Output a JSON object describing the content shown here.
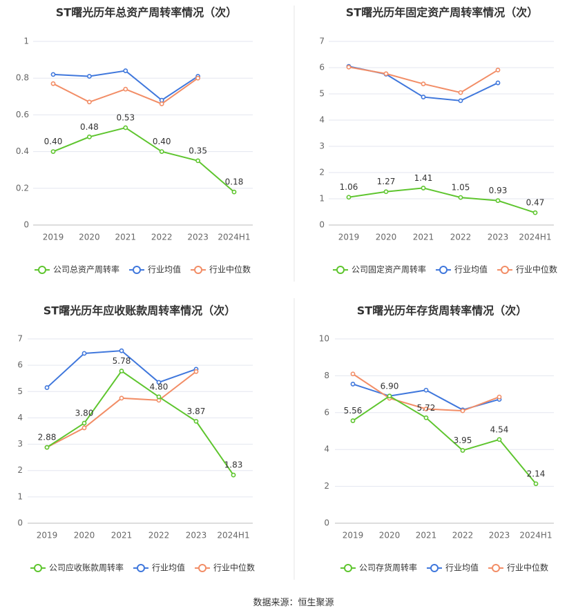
{
  "source_label": "数据来源：恒生聚源",
  "colors": {
    "company": "#5ec52e",
    "avg": "#3f77dc",
    "median": "#f28d66",
    "grid": "#e3e6ef",
    "axis": "#666666",
    "divider": "#e5e5e5"
  },
  "chart_data": [
    {
      "type": "line",
      "title": "ST曙光历年总资产周转率情况（次）",
      "categories": [
        "2019",
        "2020",
        "2021",
        "2022",
        "2023",
        "2024H1"
      ],
      "ylim": [
        0,
        1
      ],
      "yticks": [
        "0",
        "0.2",
        "0.4",
        "0.6",
        "0.8",
        "1"
      ],
      "grid": true,
      "legend_position": "bottom",
      "series": [
        {
          "name": "公司总资产周转率",
          "color": "#5ec52e",
          "values": [
            0.4,
            0.48,
            0.53,
            0.4,
            0.35,
            0.18
          ],
          "labels": [
            "0.40",
            "0.48",
            "0.53",
            "0.40",
            "0.35",
            "0.18"
          ]
        },
        {
          "name": "行业均值",
          "color": "#3f77dc",
          "values": [
            0.82,
            0.81,
            0.84,
            0.68,
            0.81,
            null
          ]
        },
        {
          "name": "行业中位数",
          "color": "#f28d66",
          "values": [
            0.77,
            0.67,
            0.74,
            0.66,
            0.8,
            null
          ]
        }
      ]
    },
    {
      "type": "line",
      "title": "ST曙光历年固定资产周转率情况（次）",
      "categories": [
        "2019",
        "2020",
        "2021",
        "2022",
        "2023",
        "2024H1"
      ],
      "ylim": [
        0,
        7
      ],
      "yticks": [
        "0",
        "1",
        "2",
        "3",
        "4",
        "5",
        "6",
        "7"
      ],
      "grid": true,
      "legend_position": "bottom",
      "series": [
        {
          "name": "公司固定资产周转率",
          "color": "#5ec52e",
          "values": [
            1.06,
            1.27,
            1.41,
            1.05,
            0.93,
            0.47
          ],
          "labels": [
            "1.06",
            "1.27",
            "1.41",
            "1.05",
            "0.93",
            "0.47"
          ]
        },
        {
          "name": "行业均值",
          "color": "#3f77dc",
          "values": [
            6.05,
            5.75,
            4.88,
            4.74,
            5.42,
            null
          ]
        },
        {
          "name": "行业中位数",
          "color": "#f28d66",
          "values": [
            6.02,
            5.77,
            5.38,
            5.05,
            5.91,
            null
          ]
        }
      ]
    },
    {
      "type": "line",
      "title": "ST曙光历年应收账款周转率情况（次）",
      "categories": [
        "2019",
        "2020",
        "2021",
        "2022",
        "2023",
        "2024H1"
      ],
      "ylim": [
        0,
        7
      ],
      "yticks": [
        "0",
        "1",
        "2",
        "3",
        "4",
        "5",
        "6",
        "7"
      ],
      "grid": true,
      "legend_position": "bottom",
      "series": [
        {
          "name": "公司应收账款周转率",
          "color": "#5ec52e",
          "values": [
            2.88,
            3.8,
            5.78,
            4.8,
            3.87,
            1.83
          ],
          "labels": [
            "2.88",
            "3.80",
            "5.78",
            "4.80",
            "3.87",
            "1.83"
          ]
        },
        {
          "name": "行业均值",
          "color": "#3f77dc",
          "values": [
            5.15,
            6.45,
            6.55,
            5.35,
            5.85,
            null
          ]
        },
        {
          "name": "行业中位数",
          "color": "#f28d66",
          "values": [
            2.88,
            3.62,
            4.75,
            4.67,
            5.76,
            null
          ]
        }
      ]
    },
    {
      "type": "line",
      "title": "ST曙光历年存货周转率情况（次）",
      "categories": [
        "2019",
        "2020",
        "2021",
        "2022",
        "2023",
        "2024H1"
      ],
      "ylim": [
        0,
        10
      ],
      "yticks": [
        "0",
        "2",
        "4",
        "6",
        "8",
        "10"
      ],
      "grid": true,
      "legend_position": "bottom",
      "series": [
        {
          "name": "公司存货周转率",
          "color": "#5ec52e",
          "values": [
            5.56,
            6.9,
            5.72,
            3.95,
            4.54,
            2.14
          ],
          "labels": [
            "5.56",
            "6.90",
            "5.72",
            "3.95",
            "4.54",
            "2.14"
          ]
        },
        {
          "name": "行业均值",
          "color": "#3f77dc",
          "values": [
            7.55,
            6.9,
            7.22,
            6.15,
            6.72,
            null
          ]
        },
        {
          "name": "行业中位数",
          "color": "#f28d66",
          "values": [
            8.1,
            6.78,
            6.2,
            6.1,
            6.85,
            null
          ]
        }
      ]
    }
  ]
}
